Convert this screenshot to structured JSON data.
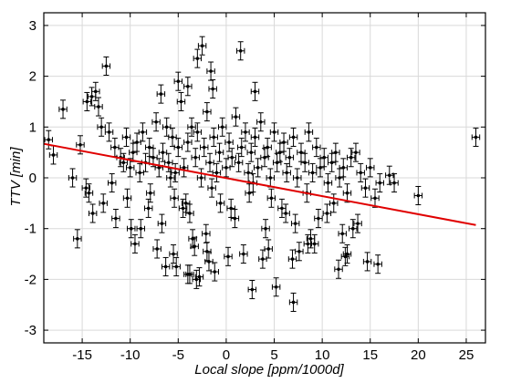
{
  "chart_data": {
    "type": "scatter",
    "xlabel": "Local slope [ppm/1000d]",
    "ylabel": "TTV [min]",
    "xlim": [
      -19,
      27
    ],
    "ylim": [
      -3.25,
      3.25
    ],
    "xticks": [
      -15,
      -10,
      -5,
      0,
      5,
      10,
      15,
      20,
      25
    ],
    "yticks": [
      -3,
      -2,
      -1,
      0,
      1,
      2,
      3
    ],
    "grid": true,
    "colors": {
      "points": "#000000",
      "errorbars": "#000000",
      "fit": "#e00000"
    },
    "series": [
      {
        "kind": "points",
        "x": [
          -18.5,
          -18,
          -17,
          -15.2,
          -14.5,
          -14,
          -13.6,
          -13.3,
          -13,
          -12.2,
          -11.6,
          -11,
          -10.7,
          -10.4,
          -10,
          -9.7,
          -9.3,
          -9,
          -8.7,
          -8.4,
          -8,
          -7.6,
          -7.3,
          -7,
          -6.6,
          -6.2,
          -6,
          -5.6,
          -5.3,
          -5,
          -4.7,
          -4.4,
          -4,
          -3.6,
          -3.2,
          -3,
          -2.6,
          -2.3,
          -2,
          -1.7,
          -1.3,
          -1,
          -0.7,
          -0.4,
          0,
          0.3,
          0.6,
          1,
          1.3,
          1.6,
          2,
          2.3,
          2.6,
          3,
          3.3,
          3.6,
          4,
          4.3,
          4.6,
          5,
          5.3,
          5.6,
          6,
          6.3,
          6.6,
          7,
          7.4,
          7.8,
          8.2,
          8.6,
          9,
          9.4,
          9.8,
          10.2,
          10.6,
          11,
          11.4,
          11.8,
          12.2,
          12.6,
          13,
          13.5,
          14,
          14.5,
          15,
          15.5,
          16,
          17,
          17.5,
          20,
          26,
          -14.3,
          -12.8,
          -11.5,
          -9.9,
          -8.1,
          -6.7,
          -5.4,
          -3.8,
          -2.1,
          -0.6,
          0.9,
          2.4,
          4.1,
          5.8,
          7.2,
          8.8,
          10.5,
          12.1,
          13.7,
          -16,
          -14.6,
          -11.9,
          -10.3,
          -7.9,
          -5.8,
          -4.2,
          -1.5,
          0.5,
          2.8,
          4.7,
          6.2,
          8.4,
          9.6,
          11.2,
          13.2,
          -4.5,
          -3,
          -1.6,
          1.5,
          3,
          -6.8,
          -5,
          -4,
          -2.5,
          -1.4,
          -12.5,
          -9.5,
          -3.5,
          1.8,
          4.4,
          6.9,
          9.2,
          12.6,
          15.8,
          -15.5,
          -13.9,
          -8.9,
          -7.2,
          -3.3,
          0.2,
          3.8,
          7.6,
          11.7,
          14.7,
          -4,
          -2,
          -1.2,
          -1.8,
          -3.8,
          -5.2,
          -3.1,
          7,
          5.2,
          2.7,
          12.4,
          -5.5,
          -6.3,
          -2.8,
          8.5
        ],
        "y": [
          0.75,
          0.45,
          1.35,
          0.65,
          1.5,
          1.6,
          1.7,
          1.4,
          1.0,
          0.9,
          0.6,
          0.4,
          0.3,
          0.8,
          0.2,
          0.5,
          0.7,
          0.1,
          0.9,
          0.3,
          0.6,
          0.4,
          1.1,
          0.2,
          0.5,
          1.0,
          0.3,
          0.8,
          0.1,
          0.6,
          1.5,
          0.2,
          0.7,
          1.0,
          0.4,
          0.9,
          0.0,
          0.6,
          1.3,
          0.3,
          0.8,
          0.1,
          0.5,
          1.0,
          0.2,
          0.7,
          0.4,
          1.2,
          0.3,
          0.6,
          0.9,
          0.1,
          0.5,
          0.8,
          0.2,
          1.1,
          0.4,
          0.6,
          0.0,
          0.9,
          0.3,
          0.5,
          0.7,
          0.1,
          0.4,
          0.8,
          0.0,
          0.5,
          0.3,
          0.9,
          0.1,
          0.6,
          0.2,
          0.4,
          -0.1,
          0.3,
          0.5,
          0.0,
          0.2,
          -0.3,
          0.4,
          0.5,
          0.1,
          -0.2,
          0.2,
          -0.4,
          -0.1,
          0.05,
          -0.1,
          -0.35,
          0.8,
          -0.3,
          -0.5,
          -0.8,
          -1.0,
          -0.6,
          -0.9,
          -0.4,
          -0.7,
          -1.1,
          -0.5,
          -0.8,
          -0.3,
          -1.0,
          -0.6,
          -0.9,
          -1.2,
          -0.7,
          -1.1,
          -0.9,
          0.0,
          -0.2,
          -0.1,
          -0.4,
          -0.3,
          0.0,
          -0.5,
          -0.2,
          -0.6,
          -0.1,
          -0.4,
          -0.7,
          -0.3,
          -0.8,
          -0.5,
          -1.0,
          -0.6,
          2.35,
          2.1,
          2.5,
          1.7,
          1.65,
          1.9,
          1.8,
          2.6,
          1.75,
          2.2,
          -1.3,
          -1.2,
          -1.5,
          -1.4,
          -1.6,
          -1.3,
          -1.5,
          -1.7,
          -1.2,
          -0.7,
          -1.0,
          -1.4,
          -1.35,
          -1.55,
          -1.6,
          -1.45,
          -1.8,
          -1.65,
          -1.9,
          -1.45,
          -1.85,
          -1.65,
          -1.9,
          -1.75,
          -2.0,
          -2.45,
          -2.15,
          -2.2,
          -1.55,
          -1.5,
          -1.75,
          -1.95,
          -1.3
        ],
        "xerr": 0.4,
        "yerr": 0.18
      },
      {
        "kind": "fit",
        "x": [
          -19,
          26
        ],
        "y": [
          0.67,
          -0.93
        ]
      }
    ]
  }
}
